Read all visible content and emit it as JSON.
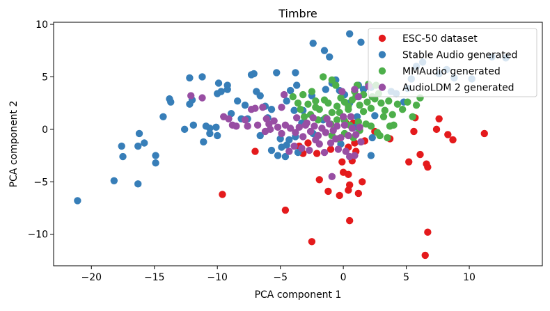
{
  "chart_data": {
    "type": "scatter",
    "title": "Timbre",
    "xlabel": "PCA component 1",
    "ylabel": "PCA component 2",
    "xlim": [
      -23,
      15.8
    ],
    "ylim": [
      -13,
      10.2
    ],
    "xticks": [
      -20,
      -15,
      -10,
      -5,
      0,
      5,
      10
    ],
    "yticks": [
      -10,
      -5,
      0,
      5,
      10
    ],
    "xtick_labels": [
      "−20",
      "−15",
      "−10",
      "−5",
      "0",
      "5",
      "10"
    ],
    "ytick_labels": [
      "−10",
      "−5",
      "0",
      "5",
      "10"
    ],
    "legend_position": "top-right",
    "series": [
      {
        "name": "ESC-50 dataset",
        "color": "#e41a1c",
        "points": [
          [
            -9.6,
            -6.2
          ],
          [
            -4.6,
            -7.7
          ],
          [
            -2.5,
            -10.7
          ],
          [
            0.5,
            -8.7
          ],
          [
            -1.9,
            -4.8
          ],
          [
            -1.2,
            -5.9
          ],
          [
            -0.3,
            -6.3
          ],
          [
            0.4,
            -5.8
          ],
          [
            1.2,
            -6.1
          ],
          [
            1.5,
            -5.0
          ],
          [
            -0.1,
            -3.1
          ],
          [
            0.0,
            -4.1
          ],
          [
            0.4,
            -4.3
          ],
          [
            0.5,
            -5.3
          ],
          [
            0.7,
            -3.0
          ],
          [
            0.9,
            -1.3
          ],
          [
            1.7,
            -1.1
          ],
          [
            3.7,
            -0.9
          ],
          [
            5.6,
            -0.2
          ],
          [
            6.1,
            -2.4
          ],
          [
            5.2,
            -3.1
          ],
          [
            6.6,
            -3.3
          ],
          [
            6.7,
            -3.6
          ],
          [
            7.6,
            1.0
          ],
          [
            8.3,
            -0.5
          ],
          [
            8.7,
            -1.0
          ],
          [
            11.2,
            -0.4
          ],
          [
            6.7,
            -9.8
          ],
          [
            6.5,
            -12.0
          ],
          [
            -7.0,
            -2.1
          ],
          [
            -3.5,
            -1.6
          ],
          [
            -2.8,
            -1.3
          ],
          [
            -2.1,
            -2.3
          ],
          [
            0.2,
            0.6
          ],
          [
            0.8,
            0.6
          ],
          [
            2.5,
            -0.2
          ],
          [
            -1.0,
            -1.9
          ],
          [
            1.0,
            -2.1
          ],
          [
            5.7,
            1.1
          ],
          [
            7.4,
            0.0
          ],
          [
            -3.2,
            -2.3
          ],
          [
            0.4,
            -1.7
          ]
        ]
      },
      {
        "name": "Stable Audio generated",
        "color": "#377eb8",
        "points": [
          [
            -21.1,
            -6.8
          ],
          [
            -18.2,
            -4.9
          ],
          [
            -16.3,
            -5.2
          ],
          [
            -17.6,
            -1.6
          ],
          [
            -17.5,
            -2.6
          ],
          [
            -16.2,
            -0.4
          ],
          [
            -16.3,
            -1.6
          ],
          [
            -15.8,
            -1.3
          ],
          [
            -14.9,
            -2.5
          ],
          [
            -14.9,
            -3.2
          ],
          [
            -14.3,
            1.2
          ],
          [
            -13.8,
            2.9
          ],
          [
            -13.7,
            2.6
          ],
          [
            -12.6,
            0.0
          ],
          [
            -11.9,
            0.4
          ],
          [
            -12.2,
            2.4
          ],
          [
            -12.0,
            2.8
          ],
          [
            -12.2,
            4.9
          ],
          [
            -11.2,
            5.0
          ],
          [
            -10.9,
            0.3
          ],
          [
            -10.6,
            0.1
          ],
          [
            -10.1,
            0.2
          ],
          [
            -10.6,
            -0.4
          ],
          [
            -11.1,
            -1.2
          ],
          [
            -10.0,
            -0.6
          ],
          [
            -10.0,
            3.4
          ],
          [
            -9.7,
            3.6
          ],
          [
            -9.2,
            3.8
          ],
          [
            -9.9,
            4.4
          ],
          [
            -9.2,
            4.2
          ],
          [
            -8.9,
            1.5
          ],
          [
            -8.4,
            2.7
          ],
          [
            -7.8,
            2.3
          ],
          [
            -7.6,
            1.0
          ],
          [
            -7.3,
            5.2
          ],
          [
            -7.1,
            5.3
          ],
          [
            -6.6,
            3.2
          ],
          [
            -6.9,
            3.6
          ],
          [
            -6.2,
            2.2
          ],
          [
            -6.0,
            1.1
          ],
          [
            -5.7,
            1.9
          ],
          [
            -5.0,
            -0.9
          ],
          [
            -4.9,
            -1.7
          ],
          [
            -5.7,
            -2.0
          ],
          [
            -5.2,
            -2.5
          ],
          [
            -4.5,
            -1.5
          ],
          [
            -4.6,
            -2.6
          ],
          [
            -3.6,
            -2.2
          ],
          [
            -4.3,
            -1.0
          ],
          [
            -3.8,
            -0.7
          ],
          [
            -3.3,
            0.6
          ],
          [
            -3.9,
            1.8
          ],
          [
            -4.5,
            2.7
          ],
          [
            -4.2,
            3.7
          ],
          [
            -3.7,
            4.2
          ],
          [
            -3.8,
            5.4
          ],
          [
            -5.3,
            5.4
          ],
          [
            -2.5,
            3.2
          ],
          [
            -2.4,
            8.2
          ],
          [
            -1.5,
            7.5
          ],
          [
            -1.1,
            6.9
          ],
          [
            -1.4,
            3.8
          ],
          [
            -0.9,
            4.4
          ],
          [
            -0.6,
            4.7
          ],
          [
            0.1,
            3.3
          ],
          [
            -0.3,
            3.7
          ],
          [
            0.5,
            9.1
          ],
          [
            1.4,
            8.3
          ],
          [
            1.2,
            4.2
          ],
          [
            1.6,
            3.8
          ],
          [
            2.2,
            4.0
          ],
          [
            3.8,
            3.6
          ],
          [
            4.2,
            3.4
          ],
          [
            4.8,
            2.6
          ],
          [
            5.1,
            3.9
          ],
          [
            5.4,
            4.8
          ],
          [
            5.8,
            6.0
          ],
          [
            6.3,
            6.4
          ],
          [
            7.6,
            5.3
          ],
          [
            8.2,
            5.7
          ],
          [
            8.8,
            4.9
          ],
          [
            10.2,
            4.8
          ],
          [
            11.8,
            6.9
          ],
          [
            12.9,
            6.8
          ],
          [
            2.3,
            -0.8
          ],
          [
            2.2,
            -2.5
          ],
          [
            1.1,
            1.2
          ],
          [
            0.9,
            0.2
          ],
          [
            -1.6,
            0.9
          ],
          [
            -2.4,
            -0.4
          ],
          [
            -3.2,
            1.8
          ],
          [
            -6.6,
            -0.6
          ],
          [
            -8.1,
            1.0
          ],
          [
            0.5,
            2.5
          ],
          [
            2.5,
            1.3
          ],
          [
            -0.2,
            -1.4
          ]
        ]
      },
      {
        "name": "MMAudio generated",
        "color": "#4daf4a",
        "points": [
          [
            -4.0,
            3.1
          ],
          [
            -3.6,
            2.5
          ],
          [
            -3.2,
            3.3
          ],
          [
            -2.8,
            2.4
          ],
          [
            -2.5,
            3.6
          ],
          [
            -2.2,
            2.7
          ],
          [
            -1.9,
            1.9
          ],
          [
            -1.5,
            2.8
          ],
          [
            -1.2,
            2.5
          ],
          [
            -0.9,
            1.6
          ],
          [
            -0.5,
            2.2
          ],
          [
            -0.2,
            3.0
          ],
          [
            0.1,
            2.6
          ],
          [
            0.4,
            1.9
          ],
          [
            0.7,
            2.8
          ],
          [
            1.0,
            3.1
          ],
          [
            1.3,
            2.3
          ],
          [
            1.6,
            1.7
          ],
          [
            1.9,
            2.6
          ],
          [
            2.2,
            2.0
          ],
          [
            2.5,
            2.9
          ],
          [
            2.8,
            3.4
          ],
          [
            3.0,
            2.5
          ],
          [
            3.3,
            1.8
          ],
          [
            3.6,
            2.7
          ],
          [
            3.9,
            1.4
          ],
          [
            4.3,
            2.4
          ],
          [
            4.7,
            1.9
          ],
          [
            5.1,
            2.6
          ],
          [
            5.5,
            1.2
          ],
          [
            5.8,
            2.3
          ],
          [
            6.1,
            3.0
          ],
          [
            -1.6,
            5.0
          ],
          [
            -0.9,
            4.7
          ],
          [
            -0.6,
            4.2
          ],
          [
            1.1,
            4.2
          ],
          [
            2.0,
            4.3
          ],
          [
            2.6,
            4.2
          ],
          [
            -3.1,
            1.2
          ],
          [
            -2.6,
            1.4
          ],
          [
            -2.0,
            0.9
          ],
          [
            -1.4,
            1.1
          ],
          [
            -1.0,
            0.5
          ],
          [
            -0.5,
            0.9
          ],
          [
            0.1,
            0.8
          ],
          [
            0.5,
            0.4
          ],
          [
            1.2,
            0.7
          ],
          [
            1.8,
            0.5
          ],
          [
            2.2,
            0.3
          ],
          [
            2.7,
            -0.3
          ],
          [
            3.2,
            1.2
          ],
          [
            3.5,
            -0.8
          ],
          [
            2.9,
            -0.6
          ],
          [
            -0.9,
            -0.6
          ],
          [
            -0.4,
            -0.9
          ],
          [
            0.1,
            -0.4
          ],
          [
            0.8,
            -0.8
          ],
          [
            1.3,
            -0.1
          ],
          [
            0.4,
            2.2
          ],
          [
            -0.3,
            1.6
          ],
          [
            1.6,
            3.3
          ],
          [
            2.3,
            3.1
          ],
          [
            0.9,
            3.6
          ],
          [
            -2.2,
            2.1
          ],
          [
            -3.4,
            1.9
          ],
          [
            3.7,
            0.3
          ],
          [
            4.0,
            0.4
          ]
        ]
      },
      {
        "name": "AudioLDM 2 generated",
        "color": "#984ea3",
        "points": [
          [
            -12.1,
            3.2
          ],
          [
            -11.2,
            3.0
          ],
          [
            -9.5,
            1.2
          ],
          [
            -9.1,
            1.0
          ],
          [
            -8.5,
            0.3
          ],
          [
            -7.8,
            0.9
          ],
          [
            -7.6,
            0.3
          ],
          [
            -7.3,
            1.9
          ],
          [
            -7.0,
            2.0
          ],
          [
            -6.8,
            0.4
          ],
          [
            -6.4,
            2.1
          ],
          [
            -6.1,
            1.0
          ],
          [
            -5.9,
            0.5
          ],
          [
            -5.5,
            0.8
          ],
          [
            -5.2,
            0.2
          ],
          [
            -4.9,
            -0.4
          ],
          [
            -4.6,
            0.4
          ],
          [
            -4.2,
            0.1
          ],
          [
            -3.8,
            -0.3
          ],
          [
            -3.5,
            0.2
          ],
          [
            -3.2,
            -0.7
          ],
          [
            -2.9,
            0.6
          ],
          [
            -2.6,
            -0.2
          ],
          [
            -2.3,
            0.3
          ],
          [
            -2.0,
            -0.6
          ],
          [
            -1.7,
            0.1
          ],
          [
            -1.4,
            -0.3
          ],
          [
            -1.1,
            0.5
          ],
          [
            -0.8,
            -0.1
          ],
          [
            -0.5,
            0.3
          ],
          [
            -0.2,
            -0.8
          ],
          [
            0.1,
            0.4
          ],
          [
            0.4,
            -0.6
          ],
          [
            0.7,
            0.1
          ],
          [
            1.0,
            -0.5
          ],
          [
            1.3,
            0.2
          ],
          [
            -4.9,
            2.1
          ],
          [
            -3.7,
            1.1
          ],
          [
            -2.4,
            1.1
          ],
          [
            -1.9,
            -1.4
          ],
          [
            -2.7,
            -2.0
          ],
          [
            -3.3,
            -1.8
          ],
          [
            -3.9,
            -1.6
          ],
          [
            -4.3,
            -2.1
          ],
          [
            -1.5,
            -2.2
          ],
          [
            -0.4,
            -1.9
          ],
          [
            0.2,
            -2.1
          ],
          [
            0.5,
            -2.6
          ],
          [
            0.9,
            -2.5
          ],
          [
            -0.9,
            -4.5
          ],
          [
            0.9,
            3.8
          ],
          [
            2.0,
            4.1
          ],
          [
            1.2,
            3.1
          ],
          [
            -0.1,
            3.6
          ],
          [
            -4.7,
            3.3
          ],
          [
            -5.8,
            0.0
          ],
          [
            -6.2,
            -0.2
          ],
          [
            -3.0,
            0.4
          ],
          [
            -1.3,
            1.0
          ],
          [
            0.6,
            1.2
          ],
          [
            1.4,
            -1.2
          ],
          [
            -0.6,
            -0.9
          ],
          [
            -8.8,
            0.4
          ],
          [
            -2.2,
            -1.0
          ],
          [
            0.0,
            1.2
          ],
          [
            -1.0,
            -1.3
          ]
        ]
      }
    ]
  }
}
